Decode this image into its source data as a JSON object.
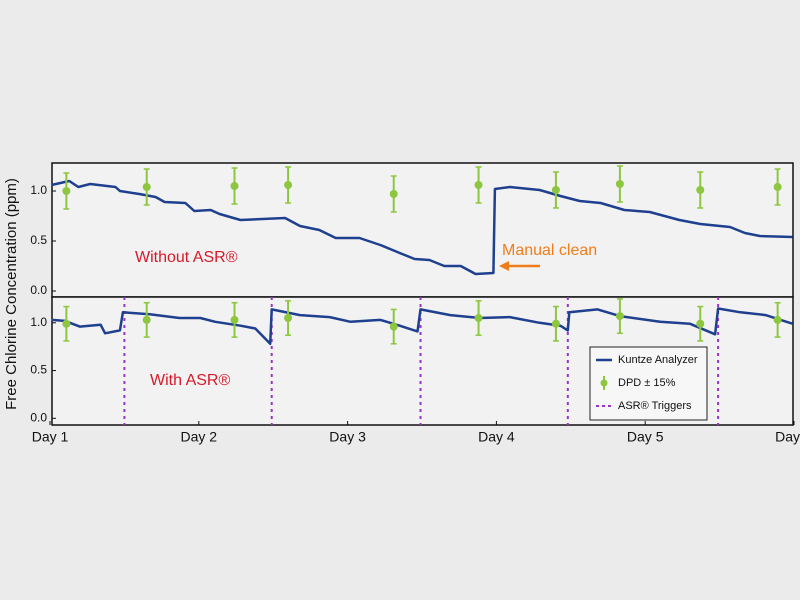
{
  "chart_data": [
    {
      "type": "line",
      "ylabel": "Free Chlorine Concentration (ppm)",
      "ylim": [
        -0.06,
        1.28
      ],
      "yticks": [
        {
          "value": 0,
          "label": "0.0"
        },
        {
          "value": 0.5,
          "label": "0.5"
        },
        {
          "value": 1,
          "label": "1.0"
        }
      ],
      "xlim": [
        1,
        6
      ],
      "annotations": [
        "Without ASR®",
        "Manual clean"
      ],
      "series": [
        {
          "color": "#1f3f8f",
          "x": [
            1.01,
            1.13,
            1.19,
            1.27,
            1.44,
            1.47,
            1.6,
            1.71,
            1.77,
            1.91,
            1.97,
            2.08,
            2.14,
            2.28,
            2.58,
            2.68,
            2.81,
            2.92,
            3.08,
            3.22,
            3.35,
            3.45,
            3.55,
            3.65,
            3.76,
            3.86,
            3.98,
            3.99,
            4.09,
            4.29,
            4.43,
            4.56,
            4.7,
            4.86,
            5.03,
            5.23,
            5.37,
            5.57,
            5.67,
            5.77,
            5.99
          ],
          "values": [
            1.06,
            1.1,
            1.04,
            1.07,
            1.04,
            1.0,
            0.97,
            0.94,
            0.89,
            0.88,
            0.8,
            0.81,
            0.77,
            0.71,
            0.73,
            0.65,
            0.61,
            0.53,
            0.53,
            0.46,
            0.38,
            0.32,
            0.31,
            0.25,
            0.25,
            0.17,
            0.18,
            1.02,
            1.04,
            1.01,
            0.95,
            0.9,
            0.88,
            0.81,
            0.79,
            0.71,
            0.67,
            0.64,
            0.58,
            0.55,
            0.54
          ]
        },
        {
          "color": "#8dc63f",
          "x": [
            1.11,
            1.65,
            2.24,
            2.6,
            3.31,
            3.88,
            4.4,
            4.83,
            5.37,
            5.89
          ],
          "values": [
            1.0,
            1.04,
            1.05,
            1.06,
            0.97,
            1.06,
            1.01,
            1.07,
            1.01,
            1.04
          ],
          "errors": [
            0.18,
            0.18,
            0.18,
            0.18,
            0.18,
            0.18,
            0.18,
            0.18,
            0.18,
            0.18
          ]
        }
      ]
    },
    {
      "type": "line",
      "ylim": [
        -0.07,
        1.27
      ],
      "yticks": [
        {
          "value": 0,
          "label": "0.0"
        },
        {
          "value": 0.5,
          "label": "0.5"
        },
        {
          "value": 1,
          "label": "1.0"
        }
      ],
      "xlim": [
        1,
        6
      ],
      "xticks": [
        {
          "value": 1,
          "label": "Day 1"
        },
        {
          "value": 2,
          "label": "Day 2"
        },
        {
          "value": 3,
          "label": "Day 3"
        },
        {
          "value": 4,
          "label": "Day 4"
        },
        {
          "value": 5,
          "label": "Day 5"
        },
        {
          "value": 6,
          "label": "Day"
        }
      ],
      "annotations": [
        "With ASR®"
      ],
      "legend_position": "lower right",
      "series": [
        {
          "name": "Kuntze Analyzer",
          "color": "#1f3f8f",
          "x": [
            1.01,
            1.1,
            1.2,
            1.34,
            1.37,
            1.47,
            1.49,
            1.67,
            1.87,
            2.01,
            2.11,
            2.28,
            2.38,
            2.48,
            2.49,
            2.68,
            2.88,
            3.02,
            3.22,
            3.35,
            3.47,
            3.49,
            3.69,
            3.89,
            4.09,
            4.29,
            4.43,
            4.48,
            4.49,
            4.68,
            4.83,
            5.1,
            5.3,
            5.47,
            5.49,
            5.64,
            5.81,
            5.91,
            5.99
          ],
          "values": [
            1.03,
            1.02,
            0.96,
            0.98,
            0.89,
            0.92,
            1.11,
            1.09,
            1.05,
            1.05,
            1.01,
            0.97,
            0.94,
            0.78,
            1.14,
            1.08,
            1.06,
            1.01,
            1.03,
            0.97,
            0.91,
            1.14,
            1.08,
            1.05,
            1.06,
            1.0,
            0.97,
            0.92,
            1.11,
            1.14,
            1.07,
            1.01,
            0.99,
            0.88,
            1.15,
            1.11,
            1.08,
            1.03,
            0.99
          ]
        },
        {
          "name": "DPD ± 15%",
          "color": "#8dc63f",
          "x": [
            1.11,
            1.65,
            2.24,
            2.6,
            3.31,
            3.88,
            4.4,
            4.83,
            5.37,
            5.89
          ],
          "values": [
            0.99,
            1.03,
            1.03,
            1.05,
            0.96,
            1.05,
            0.99,
            1.07,
            0.99,
            1.03
          ],
          "errors": [
            0.18,
            0.18,
            0.18,
            0.18,
            0.18,
            0.18,
            0.18,
            0.18,
            0.18,
            0.18
          ]
        }
      ],
      "triggers": {
        "name": "ASR® Triggers",
        "color": "#9933cc",
        "x": [
          1.5,
          2.49,
          3.49,
          4.48,
          5.49
        ]
      }
    }
  ]
}
